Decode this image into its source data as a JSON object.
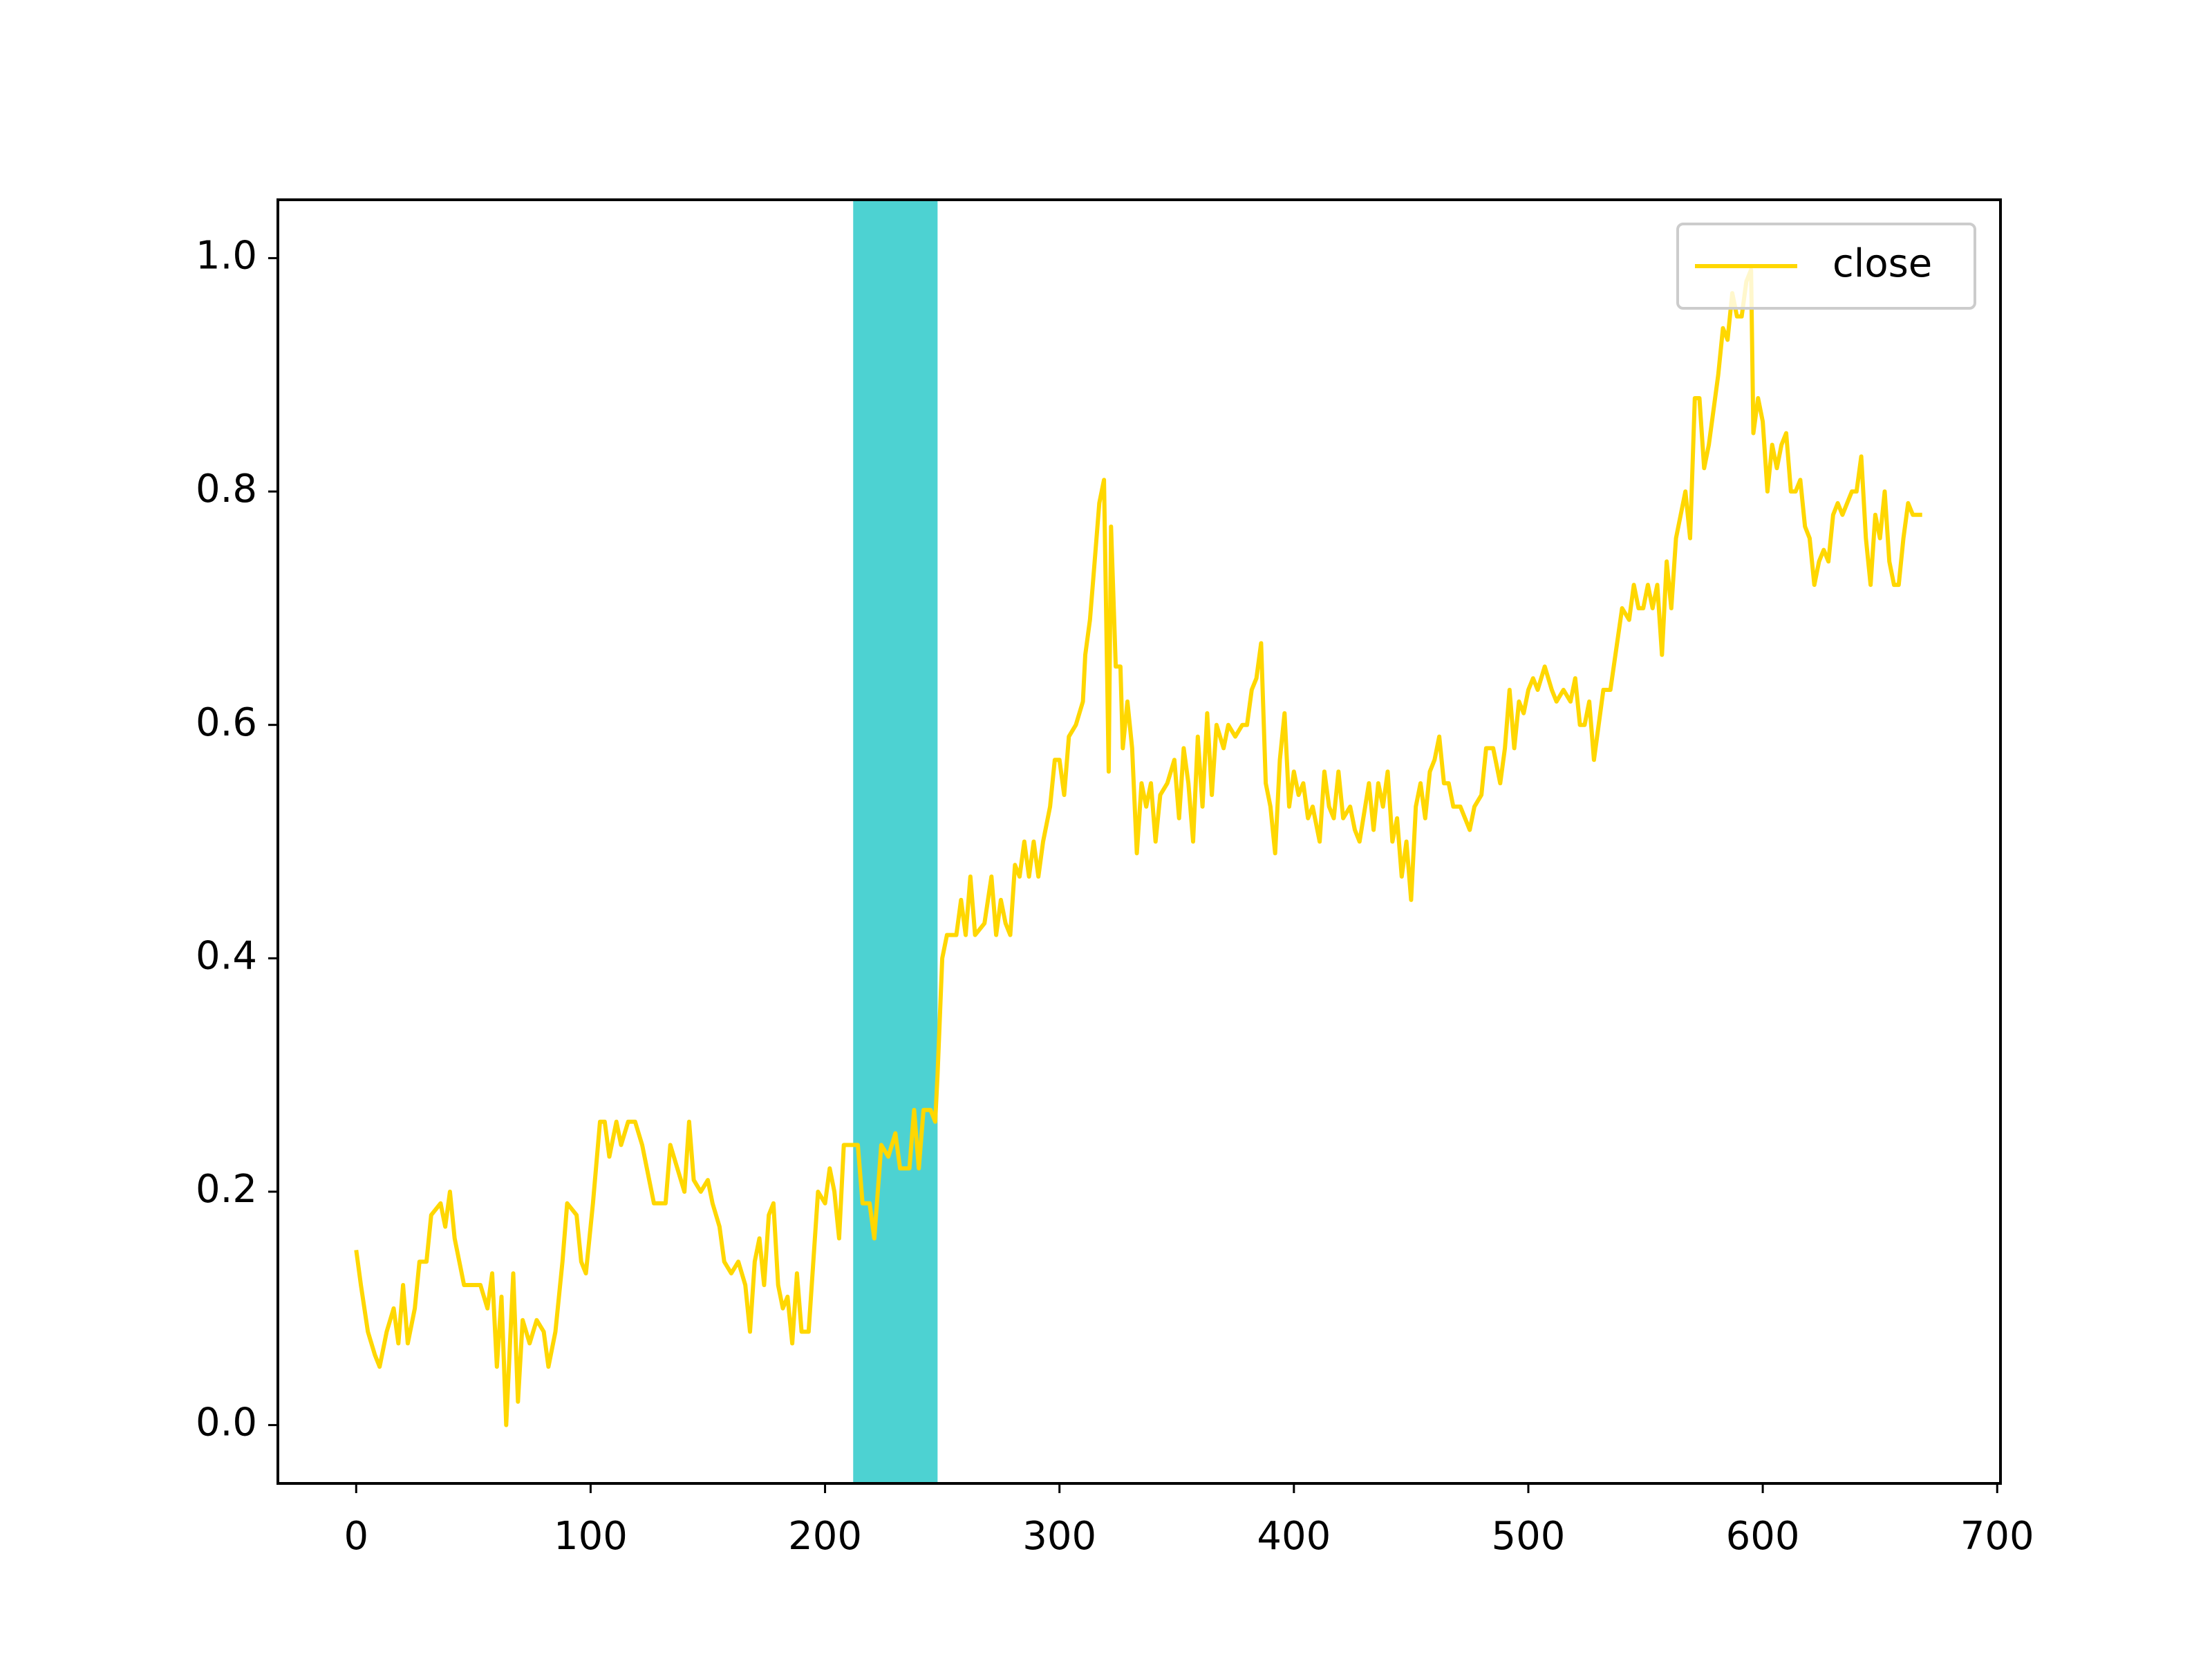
{
  "chart_data": {
    "type": "line",
    "x": [
      0,
      2,
      5,
      8,
      10,
      13,
      16,
      18,
      20,
      22,
      25,
      27,
      30,
      32,
      36,
      38,
      40,
      42,
      44,
      46,
      50,
      53,
      56,
      58,
      60,
      62,
      64,
      67,
      69,
      71,
      74,
      77,
      80,
      82,
      85,
      88,
      90,
      94,
      96,
      98,
      101,
      104,
      106,
      108,
      111,
      113,
      116,
      119,
      122,
      125,
      127,
      132,
      134,
      137,
      140,
      142,
      144,
      147,
      150,
      152,
      155,
      157,
      160,
      163,
      166,
      168,
      170,
      172,
      174,
      176,
      178,
      180,
      182,
      184,
      186,
      188,
      190,
      193,
      195,
      197,
      200,
      202,
      204,
      206,
      208,
      211,
      214,
      216,
      219,
      221,
      224,
      227,
      230,
      232,
      236,
      238,
      240,
      242,
      245,
      247,
      248,
      250,
      252,
      256,
      258,
      260,
      262,
      264,
      268,
      271,
      273,
      275,
      277,
      279,
      281,
      283,
      285,
      287,
      289,
      291,
      293,
      296,
      298,
      300,
      302,
      304,
      307,
      310,
      311,
      313,
      315,
      317,
      319,
      321,
      322,
      324,
      326,
      327,
      329,
      331,
      333,
      335,
      337,
      339,
      341,
      343,
      346,
      349,
      351,
      353,
      355,
      357,
      359,
      361,
      363,
      365,
      367,
      370,
      372,
      375,
      378,
      380,
      382,
      384,
      386,
      388,
      390,
      392,
      394,
      396,
      398,
      400,
      402,
      404,
      406,
      408,
      411,
      413,
      415,
      417,
      419,
      421,
      424,
      426,
      428,
      432,
      434,
      436,
      438,
      440,
      442,
      444,
      446,
      448,
      450,
      452,
      454,
      456,
      458,
      460,
      462,
      464,
      466,
      468,
      471,
      473,
      475,
      477,
      480,
      482,
      485,
      488,
      490,
      492,
      494,
      496,
      498,
      500,
      502,
      504,
      507,
      510,
      512,
      515,
      518,
      520,
      522,
      524,
      526,
      528,
      530,
      532,
      535,
      540,
      543,
      545,
      547,
      549,
      551,
      553,
      555,
      557,
      559,
      561,
      563,
      565,
      567,
      569,
      571,
      573,
      575,
      577,
      579,
      581,
      583,
      585,
      587,
      589,
      591,
      593,
      595,
      596,
      598,
      600,
      602,
      604,
      606,
      608,
      610,
      612,
      614,
      616,
      618,
      620,
      622,
      624,
      626,
      628,
      630,
      632,
      634,
      636,
      638,
      640,
      642,
      644,
      646,
      648,
      650,
      652,
      654,
      656,
      658,
      660,
      662,
      664,
      668
    ],
    "series": [
      {
        "name": "close",
        "color": "#ffd700",
        "values": [
          0.15,
          0.12,
          0.08,
          0.06,
          0.05,
          0.08,
          0.1,
          0.07,
          0.12,
          0.07,
          0.1,
          0.14,
          0.14,
          0.18,
          0.19,
          0.17,
          0.2,
          0.16,
          0.14,
          0.12,
          0.12,
          0.12,
          0.1,
          0.13,
          0.05,
          0.11,
          0.0,
          0.13,
          0.02,
          0.09,
          0.07,
          0.09,
          0.08,
          0.05,
          0.08,
          0.14,
          0.19,
          0.18,
          0.14,
          0.13,
          0.19,
          0.26,
          0.26,
          0.23,
          0.26,
          0.24,
          0.26,
          0.26,
          0.24,
          0.21,
          0.19,
          0.19,
          0.24,
          0.22,
          0.2,
          0.26,
          0.21,
          0.2,
          0.21,
          0.19,
          0.17,
          0.14,
          0.13,
          0.14,
          0.12,
          0.08,
          0.14,
          0.16,
          0.12,
          0.18,
          0.19,
          0.12,
          0.1,
          0.11,
          0.07,
          0.13,
          0.08,
          0.08,
          0.14,
          0.2,
          0.19,
          0.22,
          0.2,
          0.16,
          0.24,
          0.24,
          0.24,
          0.19,
          0.19,
          0.16,
          0.24,
          0.23,
          0.25,
          0.22,
          0.22,
          0.27,
          0.22,
          0.27,
          0.27,
          0.26,
          0.3,
          0.4,
          0.42,
          0.42,
          0.45,
          0.42,
          0.47,
          0.42,
          0.43,
          0.47,
          0.42,
          0.45,
          0.43,
          0.42,
          0.48,
          0.47,
          0.5,
          0.47,
          0.5,
          0.47,
          0.5,
          0.53,
          0.57,
          0.57,
          0.54,
          0.59,
          0.6,
          0.62,
          0.66,
          0.69,
          0.74,
          0.79,
          0.81,
          0.56,
          0.77,
          0.65,
          0.65,
          0.58,
          0.62,
          0.58,
          0.49,
          0.55,
          0.53,
          0.55,
          0.5,
          0.54,
          0.55,
          0.57,
          0.52,
          0.58,
          0.55,
          0.5,
          0.59,
          0.53,
          0.61,
          0.54,
          0.6,
          0.58,
          0.6,
          0.59,
          0.6,
          0.6,
          0.63,
          0.64,
          0.67,
          0.55,
          0.53,
          0.49,
          0.57,
          0.61,
          0.53,
          0.56,
          0.54,
          0.55,
          0.52,
          0.53,
          0.5,
          0.56,
          0.53,
          0.52,
          0.56,
          0.52,
          0.53,
          0.51,
          0.5,
          0.55,
          0.51,
          0.55,
          0.53,
          0.56,
          0.5,
          0.52,
          0.47,
          0.5,
          0.45,
          0.53,
          0.55,
          0.52,
          0.56,
          0.57,
          0.59,
          0.55,
          0.55,
          0.53,
          0.53,
          0.52,
          0.51,
          0.53,
          0.54,
          0.58,
          0.58,
          0.55,
          0.58,
          0.63,
          0.58,
          0.62,
          0.61,
          0.63,
          0.64,
          0.63,
          0.65,
          0.63,
          0.62,
          0.63,
          0.62,
          0.64,
          0.6,
          0.6,
          0.62,
          0.57,
          0.6,
          0.63,
          0.63,
          0.7,
          0.69,
          0.72,
          0.7,
          0.7,
          0.72,
          0.7,
          0.72,
          0.66,
          0.74,
          0.7,
          0.76,
          0.78,
          0.8,
          0.76,
          0.88,
          0.88,
          0.82,
          0.84,
          0.87,
          0.9,
          0.94,
          0.93,
          0.97,
          0.95,
          0.95,
          0.98,
          0.99,
          0.85,
          0.88,
          0.86,
          0.8,
          0.84,
          0.82,
          0.84,
          0.85,
          0.8,
          0.8,
          0.81,
          0.77,
          0.76,
          0.72,
          0.74,
          0.75,
          0.74,
          0.78,
          0.79,
          0.78,
          0.79,
          0.8,
          0.8,
          0.83,
          0.76,
          0.72,
          0.78,
          0.76,
          0.8,
          0.74,
          0.72,
          0.72,
          0.76,
          0.79,
          0.78,
          0.78
        ]
      }
    ],
    "axvspan": [
      212,
      248
    ],
    "span_color": "#4dd2d2",
    "xlim": [
      -33.4,
      701.4
    ],
    "ylim": [
      -0.05,
      1.05
    ],
    "xticks": [
      0,
      100,
      200,
      300,
      400,
      500,
      600,
      700
    ],
    "yticks": [
      {
        "value": 0,
        "label": "0.0"
      },
      {
        "value": 0.2,
        "label": "0.2"
      },
      {
        "value": 0.4,
        "label": "0.4"
      },
      {
        "value": 0.6,
        "label": "0.6"
      },
      {
        "value": 0.8,
        "label": "0.8"
      },
      {
        "value": 1,
        "label": "1.0"
      }
    ],
    "legend": "upper right"
  }
}
